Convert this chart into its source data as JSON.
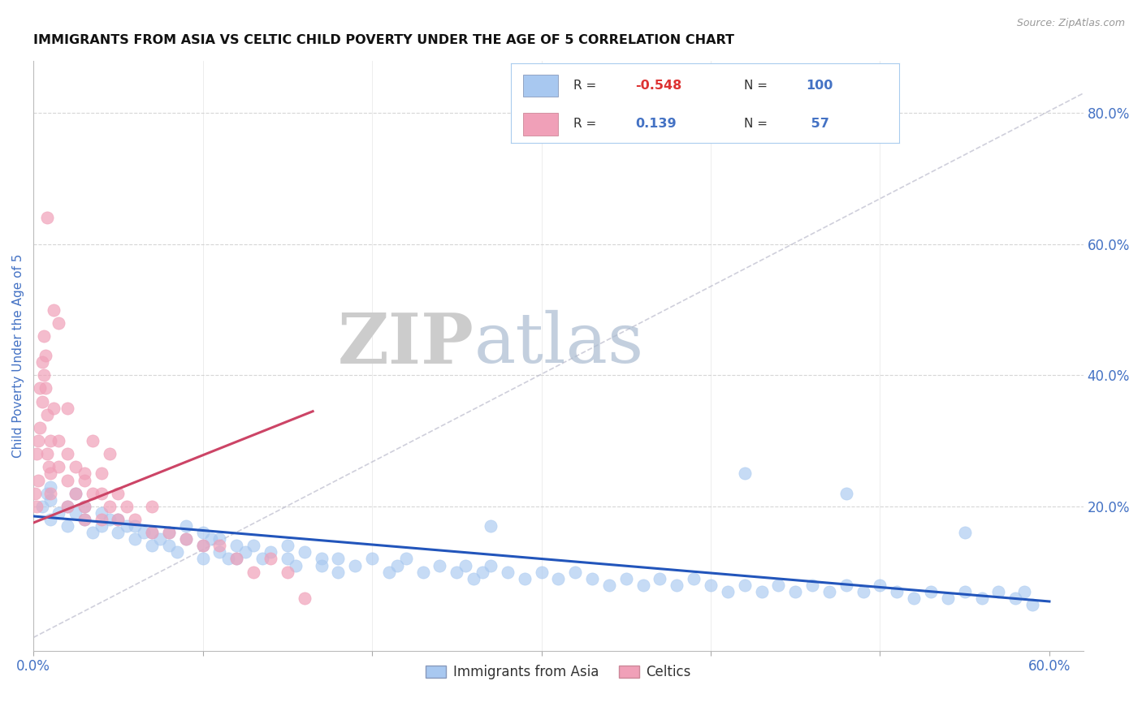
{
  "title": "IMMIGRANTS FROM ASIA VS CELTIC CHILD POVERTY UNDER THE AGE OF 5 CORRELATION CHART",
  "source_text": "Source: ZipAtlas.com",
  "ylabel": "Child Poverty Under the Age of 5",
  "xlim": [
    0.0,
    0.62
  ],
  "ylim": [
    -0.02,
    0.88
  ],
  "xtick_positions": [
    0.0,
    0.1,
    0.2,
    0.3,
    0.4,
    0.5,
    0.6
  ],
  "xtick_labels": [
    "0.0%",
    "",
    "",
    "",
    "",
    "",
    "60.0%"
  ],
  "ytick_labels_right": [
    "",
    "20.0%",
    "40.0%",
    "60.0%",
    "80.0%"
  ],
  "ytick_positions_right": [
    0.0,
    0.2,
    0.4,
    0.6,
    0.8
  ],
  "grid_yticks": [
    0.2,
    0.4,
    0.6,
    0.8
  ],
  "legend": {
    "series1_label": "Immigrants from Asia",
    "series2_label": "Celtics",
    "R1": "-0.548",
    "N1": "100",
    "R2": "0.139",
    "N2": "57"
  },
  "blue_color": "#A8C8F0",
  "pink_color": "#F0A0B8",
  "blue_line_color": "#2255BB",
  "pink_line_color": "#CC4466",
  "axis_label_color": "#4472C4",
  "grid_color": "#CCCCCC",
  "watermark_zip": "ZIP",
  "watermark_atlas": "atlas",
  "background_color": "#FFFFFF",
  "blue_scatter_x": [
    0.005,
    0.008,
    0.01,
    0.01,
    0.01,
    0.015,
    0.02,
    0.02,
    0.025,
    0.025,
    0.03,
    0.03,
    0.035,
    0.04,
    0.04,
    0.045,
    0.05,
    0.05,
    0.055,
    0.06,
    0.06,
    0.065,
    0.07,
    0.07,
    0.075,
    0.08,
    0.08,
    0.085,
    0.09,
    0.09,
    0.1,
    0.1,
    0.1,
    0.105,
    0.11,
    0.11,
    0.115,
    0.12,
    0.12,
    0.125,
    0.13,
    0.135,
    0.14,
    0.15,
    0.15,
    0.155,
    0.16,
    0.17,
    0.17,
    0.18,
    0.18,
    0.19,
    0.2,
    0.21,
    0.215,
    0.22,
    0.23,
    0.24,
    0.25,
    0.255,
    0.26,
    0.265,
    0.27,
    0.28,
    0.29,
    0.3,
    0.31,
    0.32,
    0.33,
    0.34,
    0.35,
    0.36,
    0.37,
    0.38,
    0.39,
    0.4,
    0.41,
    0.42,
    0.43,
    0.44,
    0.45,
    0.46,
    0.47,
    0.48,
    0.49,
    0.5,
    0.51,
    0.52,
    0.53,
    0.54,
    0.55,
    0.56,
    0.57,
    0.58,
    0.585,
    0.59,
    0.42,
    0.55,
    0.48,
    0.27
  ],
  "blue_scatter_y": [
    0.2,
    0.22,
    0.18,
    0.21,
    0.23,
    0.19,
    0.2,
    0.17,
    0.19,
    0.22,
    0.18,
    0.2,
    0.16,
    0.19,
    0.17,
    0.18,
    0.16,
    0.18,
    0.17,
    0.15,
    0.17,
    0.16,
    0.14,
    0.16,
    0.15,
    0.14,
    0.16,
    0.13,
    0.15,
    0.17,
    0.14,
    0.16,
    0.12,
    0.15,
    0.13,
    0.15,
    0.12,
    0.14,
    0.12,
    0.13,
    0.14,
    0.12,
    0.13,
    0.12,
    0.14,
    0.11,
    0.13,
    0.12,
    0.11,
    0.12,
    0.1,
    0.11,
    0.12,
    0.1,
    0.11,
    0.12,
    0.1,
    0.11,
    0.1,
    0.11,
    0.09,
    0.1,
    0.11,
    0.1,
    0.09,
    0.1,
    0.09,
    0.1,
    0.09,
    0.08,
    0.09,
    0.08,
    0.09,
    0.08,
    0.09,
    0.08,
    0.07,
    0.08,
    0.07,
    0.08,
    0.07,
    0.08,
    0.07,
    0.08,
    0.07,
    0.08,
    0.07,
    0.06,
    0.07,
    0.06,
    0.07,
    0.06,
    0.07,
    0.06,
    0.07,
    0.05,
    0.25,
    0.16,
    0.22,
    0.17
  ],
  "pink_scatter_x": [
    0.001,
    0.002,
    0.002,
    0.003,
    0.003,
    0.004,
    0.004,
    0.005,
    0.005,
    0.006,
    0.006,
    0.007,
    0.007,
    0.008,
    0.008,
    0.009,
    0.01,
    0.01,
    0.01,
    0.012,
    0.015,
    0.015,
    0.02,
    0.02,
    0.02,
    0.025,
    0.025,
    0.03,
    0.03,
    0.03,
    0.035,
    0.04,
    0.04,
    0.04,
    0.045,
    0.05,
    0.05,
    0.055,
    0.06,
    0.07,
    0.07,
    0.08,
    0.09,
    0.1,
    0.11,
    0.12,
    0.13,
    0.14,
    0.15,
    0.16,
    0.035,
    0.045,
    0.015,
    0.008,
    0.012,
    0.02,
    0.03
  ],
  "pink_scatter_y": [
    0.22,
    0.28,
    0.2,
    0.3,
    0.24,
    0.38,
    0.32,
    0.42,
    0.36,
    0.4,
    0.46,
    0.43,
    0.38,
    0.34,
    0.28,
    0.26,
    0.3,
    0.25,
    0.22,
    0.35,
    0.3,
    0.26,
    0.28,
    0.24,
    0.2,
    0.26,
    0.22,
    0.24,
    0.2,
    0.25,
    0.22,
    0.22,
    0.18,
    0.25,
    0.2,
    0.18,
    0.22,
    0.2,
    0.18,
    0.16,
    0.2,
    0.16,
    0.15,
    0.14,
    0.14,
    0.12,
    0.1,
    0.12,
    0.1,
    0.06,
    0.3,
    0.28,
    0.48,
    0.64,
    0.5,
    0.35,
    0.18
  ],
  "blue_trend_x": [
    0.0,
    0.6
  ],
  "blue_trend_y": [
    0.185,
    0.055
  ],
  "pink_trend_x": [
    0.0,
    0.165
  ],
  "pink_trend_y": [
    0.175,
    0.345
  ],
  "diag_line_x": [
    0.0,
    0.62
  ],
  "diag_line_y": [
    0.0,
    0.83
  ]
}
